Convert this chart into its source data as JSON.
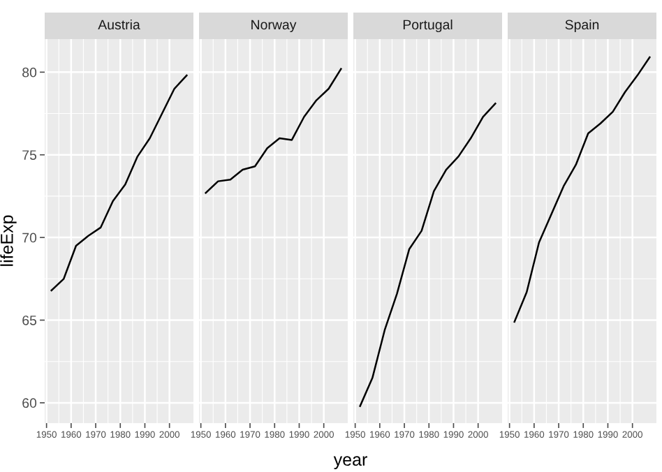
{
  "chart_data": [
    {
      "type": "line",
      "title": "Austria",
      "ylabel": "lifeExp",
      "annotations": [
        "year"
      ],
      "x": [
        1952,
        1957,
        1962,
        1967,
        1972,
        1977,
        1982,
        1987,
        1992,
        1997,
        2002,
        2007
      ],
      "series": [
        {
          "color": "#000000",
          "values": [
            66.8,
            67.5,
            69.5,
            70.1,
            70.6,
            72.2,
            73.2,
            74.9,
            76.0,
            77.5,
            79.0,
            79.8
          ]
        }
      ],
      "xlim": [
        1949.25,
        2009.75
      ],
      "ylim": [
        58.77,
        82.0
      ],
      "xticks": [
        1950,
        1960,
        1970,
        1980,
        1990,
        2000
      ],
      "yticks": [
        60,
        65,
        70,
        75,
        80
      ],
      "grid": true,
      "legend": false
    },
    {
      "type": "line",
      "title": "Norway",
      "x": [
        1952,
        1957,
        1962,
        1967,
        1972,
        1977,
        1982,
        1987,
        1992,
        1997,
        2002,
        2007
      ],
      "series": [
        {
          "color": "#000000",
          "values": [
            72.7,
            73.4,
            73.5,
            74.1,
            74.3,
            75.4,
            76.0,
            75.9,
            77.3,
            78.3,
            79.0,
            80.2
          ]
        }
      ],
      "xlim": [
        1949.25,
        2009.75
      ],
      "ylim": [
        58.77,
        82.0
      ],
      "xticks": [
        1950,
        1960,
        1970,
        1980,
        1990,
        2000
      ],
      "yticks": [
        60,
        65,
        70,
        75,
        80
      ],
      "grid": true,
      "legend": false,
      "tick_labels": "x"
    },
    {
      "type": "line",
      "title": "Portugal",
      "x": [
        1952,
        1957,
        1962,
        1967,
        1972,
        1977,
        1982,
        1987,
        1992,
        1997,
        2002,
        2007
      ],
      "series": [
        {
          "color": "#000000",
          "values": [
            59.8,
            61.5,
            64.4,
            66.6,
            69.3,
            70.4,
            72.8,
            74.1,
            74.9,
            76.0,
            77.3,
            78.1
          ]
        }
      ],
      "xlim": [
        1949.25,
        2009.75
      ],
      "ylim": [
        58.77,
        82.0
      ],
      "xticks": [
        1950,
        1960,
        1970,
        1980,
        1990,
        2000
      ],
      "yticks": [
        60,
        65,
        70,
        75,
        80
      ],
      "grid": true,
      "legend": false,
      "tick_labels": "x"
    },
    {
      "type": "line",
      "title": "Spain",
      "x": [
        1952,
        1957,
        1962,
        1967,
        1972,
        1977,
        1982,
        1987,
        1992,
        1997,
        2002,
        2007
      ],
      "series": [
        {
          "color": "#000000",
          "values": [
            64.9,
            66.7,
            69.7,
            71.4,
            73.1,
            74.4,
            76.3,
            76.9,
            77.6,
            78.8,
            79.8,
            80.9
          ]
        }
      ],
      "xlim": [
        1949.25,
        2009.75
      ],
      "ylim": [
        58.77,
        82.0
      ],
      "xticks": [
        1950,
        1960,
        1970,
        1980,
        1990,
        2000
      ],
      "yticks": [
        60,
        65,
        70,
        75,
        80
      ],
      "grid": true,
      "legend": false,
      "tick_labels": "x"
    }
  ]
}
